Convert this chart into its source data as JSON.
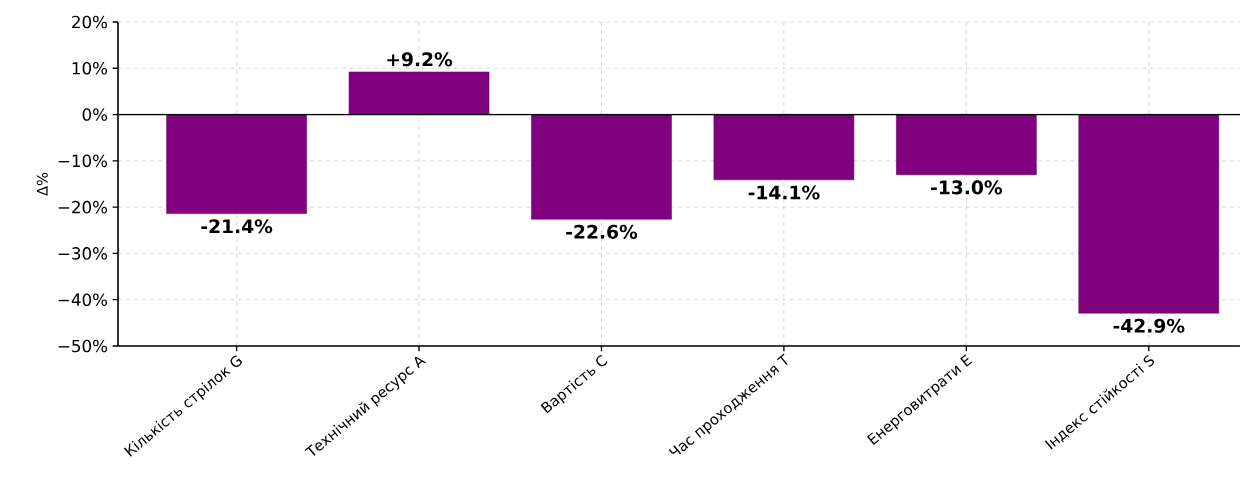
{
  "chart_data": {
    "type": "bar",
    "ylabel": "Δ%",
    "categories": [
      "Кількість стрілок G",
      "Технічний ресурс A",
      "Вартість C",
      "Час проходження T",
      "Енерговитрати E",
      "Індекс стійкості S"
    ],
    "values": [
      -21.4,
      9.2,
      -22.6,
      -14.1,
      -13.0,
      -42.9
    ],
    "value_labels": [
      "-21.4%",
      "+9.2%",
      "-22.6%",
      "-14.1%",
      "-13.0%",
      "-42.9%"
    ],
    "color": "#800080",
    "ylim": [
      -50,
      20
    ],
    "yticks": [
      {
        "value": -50,
        "label": "−50%"
      },
      {
        "value": -40,
        "label": "−40%"
      },
      {
        "value": -30,
        "label": "−30%"
      },
      {
        "value": -20,
        "label": "−20%"
      },
      {
        "value": -10,
        "label": "−10%"
      },
      {
        "value": 0,
        "label": "0%"
      },
      {
        "value": 10,
        "label": "10%"
      },
      {
        "value": 20,
        "label": "20%"
      }
    ],
    "ref_lines": [
      {
        "axis": "y",
        "value": 0,
        "color": "#000000"
      }
    ],
    "grid": true
  }
}
